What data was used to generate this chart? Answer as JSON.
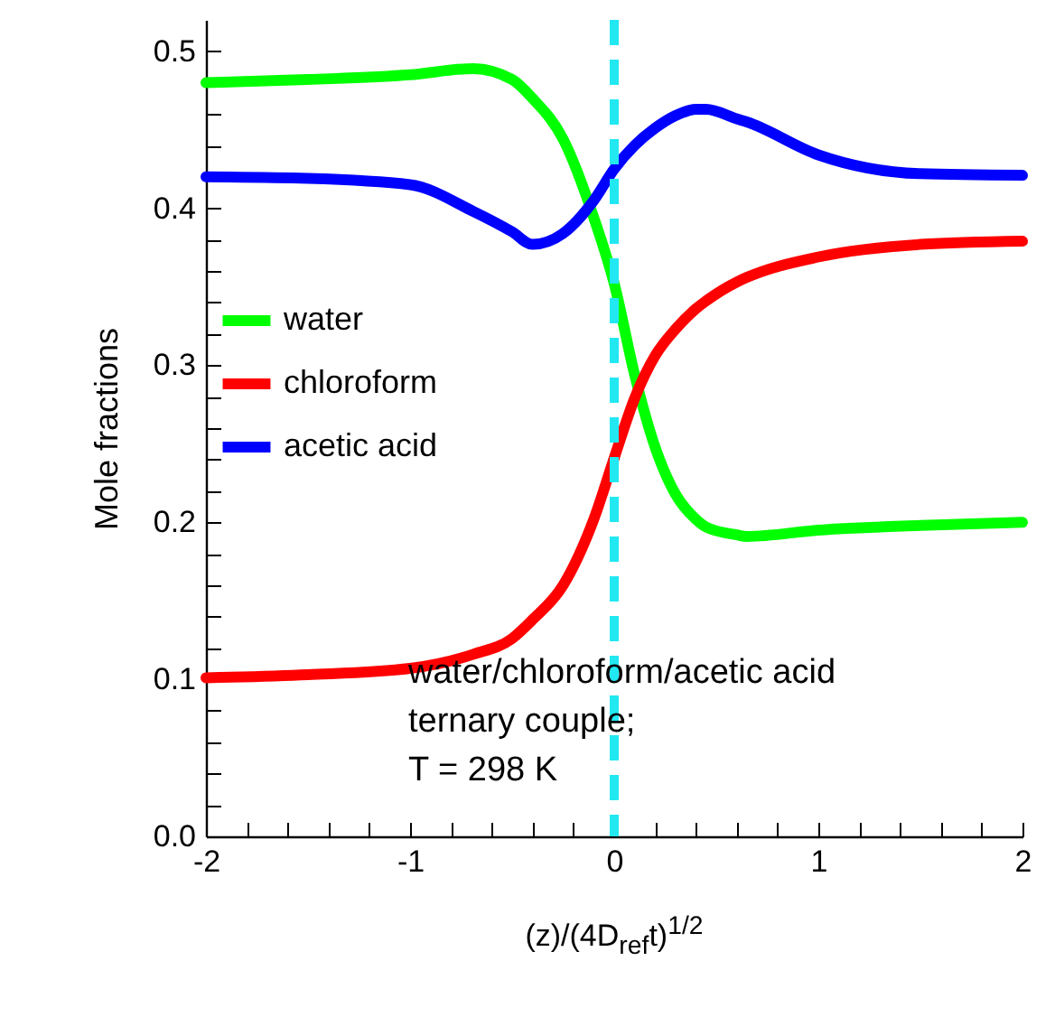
{
  "chart_data": {
    "type": "line",
    "xlabel": "(z)/(4D$_{ref}$t)$^{1/2}$",
    "ylabel": "Mole fractions",
    "x": [
      -2,
      -1.5,
      -1,
      -0.69,
      -0.5,
      -0.4,
      -0.25,
      -0.1,
      0,
      0.1,
      0.2,
      0.3,
      0.4,
      0.45,
      0.6,
      0.65,
      1,
      1.5,
      2
    ],
    "series": [
      {
        "name": "water",
        "color": "#00ff00",
        "values": [
          0.48,
          0.482,
          0.485,
          0.489,
          0.482,
          0.47,
          0.444,
          0.394,
          0.352,
          0.294,
          0.248,
          0.218,
          0.202,
          0.197,
          0.192,
          0.191,
          0.195,
          0.198,
          0.2
        ]
      },
      {
        "name": "chloroform",
        "color": "#ff0000",
        "values": [
          0.101,
          0.103,
          0.107,
          0.116,
          0.126,
          0.138,
          0.16,
          0.202,
          0.241,
          0.279,
          0.306,
          0.323,
          0.336,
          0.341,
          0.353,
          0.356,
          0.369,
          0.377,
          0.379
        ]
      },
      {
        "name": "acetic acid",
        "color": "#0000ff",
        "values": [
          0.42,
          0.419,
          0.415,
          0.398,
          0.385,
          0.377,
          0.384,
          0.405,
          0.425,
          0.44,
          0.451,
          0.459,
          0.463,
          0.463,
          0.457,
          0.455,
          0.434,
          0.422,
          0.421
        ]
      }
    ],
    "xlim": [
      -2,
      2
    ],
    "ylim": [
      0,
      0.52
    ],
    "xticks": [
      -2,
      {
        "value": -1.8,
        "label": null
      },
      {
        "value": -1.6,
        "label": null
      },
      {
        "value": -1.4,
        "label": null
      },
      {
        "value": -1.2,
        "label": null
      },
      -1,
      {
        "value": -0.8,
        "label": null
      },
      {
        "value": -0.6,
        "label": null
      },
      {
        "value": -0.4,
        "label": null
      },
      {
        "value": -0.2,
        "label": null
      },
      0,
      {
        "value": 0.2,
        "label": null
      },
      {
        "value": 0.4,
        "label": null
      },
      {
        "value": 0.6,
        "label": null
      },
      {
        "value": 0.8,
        "label": null
      },
      1,
      {
        "value": 1.2,
        "label": null
      },
      {
        "value": 1.4,
        "label": null
      },
      {
        "value": 1.6,
        "label": null
      },
      {
        "value": 1.8,
        "label": null
      },
      2
    ],
    "yticks": [
      {
        "value": 0,
        "label": "0.0"
      },
      {
        "value": 0.02,
        "label": null
      },
      {
        "value": 0.04,
        "label": null
      },
      {
        "value": 0.06,
        "label": null
      },
      {
        "value": 0.08,
        "label": null
      },
      {
        "value": 0.1,
        "label": "0.1"
      },
      {
        "value": 0.12,
        "label": null
      },
      {
        "value": 0.14,
        "label": null
      },
      {
        "value": 0.16,
        "label": null
      },
      {
        "value": 0.18,
        "label": null
      },
      {
        "value": 0.2,
        "label": "0.2"
      },
      {
        "value": 0.22,
        "label": null
      },
      {
        "value": 0.24,
        "label": null
      },
      {
        "value": 0.26,
        "label": null
      },
      {
        "value": 0.28,
        "label": null
      },
      {
        "value": 0.3,
        "label": "0.3"
      },
      {
        "value": 0.32,
        "label": null
      },
      {
        "value": 0.34,
        "label": null
      },
      {
        "value": 0.36,
        "label": null
      },
      {
        "value": 0.38,
        "label": null
      },
      {
        "value": 0.4,
        "label": "0.4"
      },
      {
        "value": 0.42,
        "label": null
      },
      {
        "value": 0.44,
        "label": null
      },
      {
        "value": 0.46,
        "label": null
      },
      {
        "value": 0.48,
        "label": null
      },
      {
        "value": 0.5,
        "label": "0.5"
      }
    ],
    "ref_lines": [
      {
        "axis": "x",
        "value": 0,
        "color": "#22e8f2",
        "line_style": "dashed"
      }
    ],
    "annotations": [
      "water/chloroform/acetic acid\nternary couple;\nT = 298 K"
    ],
    "legend": "left",
    "grid": false,
    "marker": "none",
    "line_style": "solid"
  }
}
